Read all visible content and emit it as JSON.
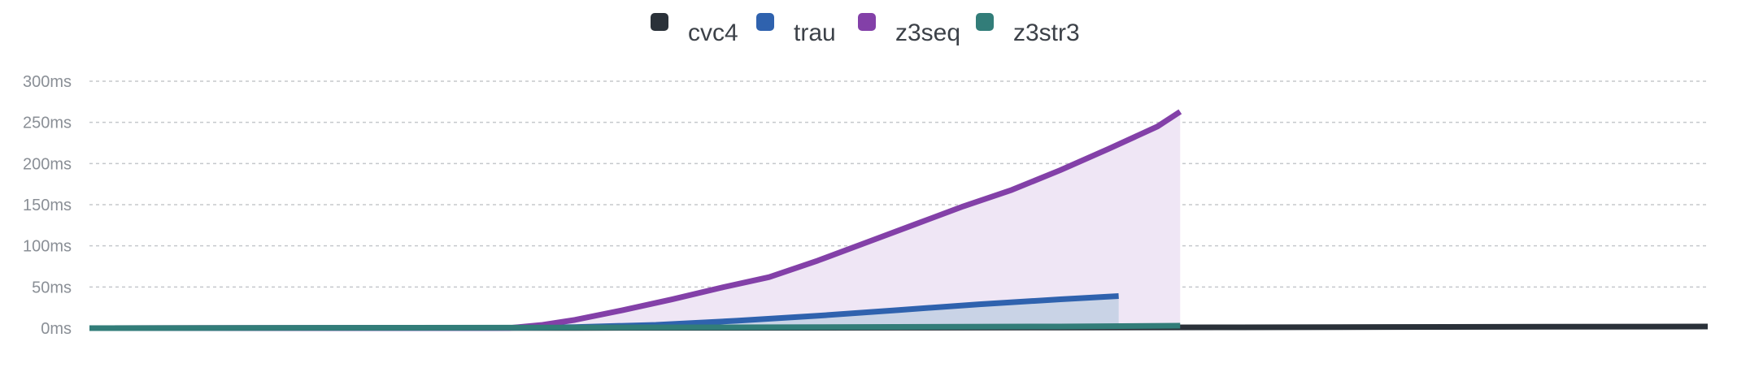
{
  "chart_data": {
    "type": "line",
    "title": "",
    "xlabel": "",
    "ylabel": "",
    "ylim": [
      0,
      300
    ],
    "y_ticks": [
      0,
      50,
      100,
      150,
      200,
      250,
      300
    ],
    "y_tick_labels": [
      "0ms",
      "50ms",
      "100ms",
      "150ms",
      "200ms",
      "250ms",
      "300ms"
    ],
    "x_axis_labels_visible": false,
    "grid": true,
    "legend_position": "top-center",
    "series": [
      {
        "name": "cvc4",
        "color": "#2a3139",
        "area_fill": false,
        "points": [
          [
            0,
            0
          ],
          [
            0.1,
            0.1
          ],
          [
            0.2,
            0.2
          ],
          [
            0.3,
            0.3
          ],
          [
            0.4,
            0.4
          ],
          [
            0.5,
            0.6
          ],
          [
            0.6,
            0.8
          ],
          [
            0.7,
            1.0
          ],
          [
            0.8,
            1.3
          ],
          [
            0.9,
            1.7
          ],
          [
            1.0,
            2.0
          ]
        ]
      },
      {
        "name": "trau",
        "color": "#2f62ae",
        "area_fill": true,
        "area_color": "#c9d3e6",
        "points": [
          [
            0,
            0
          ],
          [
            0.25,
            0.2
          ],
          [
            0.3,
            1.2
          ],
          [
            0.35,
            4
          ],
          [
            0.4,
            9
          ],
          [
            0.45,
            15
          ],
          [
            0.5,
            22
          ],
          [
            0.55,
            29
          ],
          [
            0.6,
            35
          ],
          [
            0.636,
            39
          ]
        ]
      },
      {
        "name": "z3seq",
        "color": "#8340a8",
        "area_fill": true,
        "area_color": "#efe6f5",
        "points": [
          [
            0,
            0
          ],
          [
            0.26,
            0.3
          ],
          [
            0.28,
            4
          ],
          [
            0.3,
            10
          ],
          [
            0.33,
            22
          ],
          [
            0.36,
            35
          ],
          [
            0.39,
            49
          ],
          [
            0.42,
            62
          ],
          [
            0.45,
            82
          ],
          [
            0.48,
            104
          ],
          [
            0.51,
            126
          ],
          [
            0.54,
            148
          ],
          [
            0.57,
            168
          ],
          [
            0.6,
            192
          ],
          [
            0.63,
            218
          ],
          [
            0.66,
            245
          ],
          [
            0.674,
            263
          ]
        ]
      },
      {
        "name": "z3str3",
        "color": "#327d79",
        "area_fill": true,
        "area_color": "#c6dcd9",
        "points": [
          [
            0,
            0
          ],
          [
            0.2,
            0.5
          ],
          [
            0.4,
            1.0
          ],
          [
            0.6,
            2.0
          ],
          [
            0.674,
            3.0
          ]
        ]
      }
    ]
  }
}
